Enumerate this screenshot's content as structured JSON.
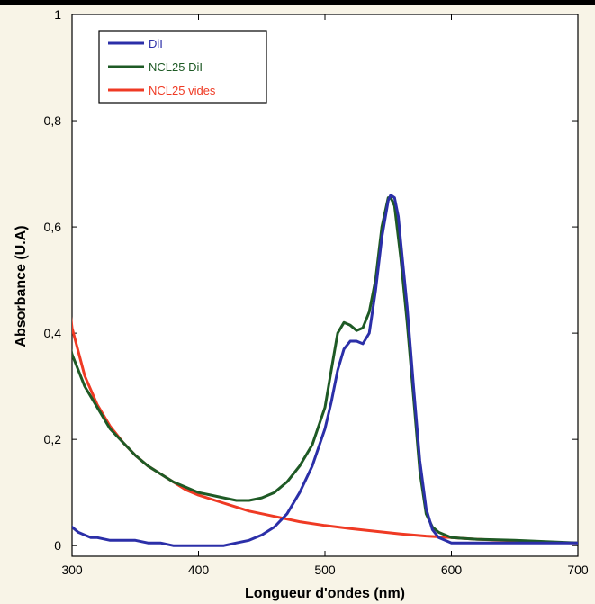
{
  "chart_data": {
    "type": "line",
    "title": "",
    "xlabel": "Longueur d'ondes (nm)",
    "ylabel": "Absorbance (U.A)",
    "xlim": [
      300,
      700
    ],
    "ylim": [
      -0.02,
      1.0
    ],
    "x_ticks": [
      300,
      400,
      500,
      600,
      700
    ],
    "x_tick_labels": [
      "300",
      "400",
      "500",
      "600",
      "700"
    ],
    "y_ticks": [
      0,
      0.2,
      0.4,
      0.6,
      0.8,
      1
    ],
    "y_tick_labels": [
      "0",
      "0,2",
      "0,4",
      "0,6",
      "0,8",
      "1"
    ],
    "grid": false,
    "legend_position": "top-left",
    "series": [
      {
        "name": "DiI",
        "color": "#2b2fa8",
        "x": [
          298,
          300,
          305,
          310,
          315,
          320,
          330,
          340,
          350,
          360,
          370,
          380,
          390,
          400,
          410,
          420,
          430,
          440,
          450,
          460,
          470,
          480,
          490,
          500,
          505,
          510,
          515,
          520,
          525,
          530,
          535,
          540,
          545,
          550,
          552,
          555,
          558,
          560,
          565,
          570,
          575,
          580,
          585,
          590,
          600,
          620,
          650,
          700
        ],
        "y": [
          0.04,
          0.035,
          0.025,
          0.02,
          0.015,
          0.015,
          0.01,
          0.01,
          0.01,
          0.005,
          0.005,
          0.0,
          0.0,
          0.0,
          0.0,
          0.0,
          0.005,
          0.01,
          0.02,
          0.035,
          0.06,
          0.1,
          0.15,
          0.22,
          0.27,
          0.33,
          0.37,
          0.385,
          0.385,
          0.38,
          0.4,
          0.48,
          0.58,
          0.65,
          0.66,
          0.655,
          0.62,
          0.57,
          0.45,
          0.3,
          0.16,
          0.07,
          0.03,
          0.015,
          0.005,
          0.005,
          0.005,
          0.005
        ]
      },
      {
        "name": "NCL25 DiI",
        "color": "#1e5a25",
        "x": [
          298,
          300,
          310,
          320,
          330,
          340,
          350,
          360,
          370,
          380,
          390,
          400,
          410,
          420,
          430,
          440,
          450,
          460,
          470,
          480,
          490,
          500,
          505,
          510,
          515,
          520,
          525,
          530,
          535,
          540,
          545,
          550,
          552,
          555,
          560,
          565,
          570,
          575,
          580,
          585,
          590,
          600,
          620,
          650,
          700
        ],
        "y": [
          0.38,
          0.36,
          0.3,
          0.26,
          0.22,
          0.195,
          0.17,
          0.15,
          0.135,
          0.12,
          0.11,
          0.1,
          0.095,
          0.09,
          0.085,
          0.085,
          0.09,
          0.1,
          0.12,
          0.15,
          0.19,
          0.26,
          0.33,
          0.4,
          0.42,
          0.415,
          0.405,
          0.41,
          0.44,
          0.5,
          0.6,
          0.655,
          0.655,
          0.64,
          0.54,
          0.42,
          0.28,
          0.14,
          0.06,
          0.035,
          0.025,
          0.015,
          0.012,
          0.01,
          0.005
        ]
      },
      {
        "name": "NCL25 vides",
        "color": "#ef3a24",
        "x": [
          298,
          300,
          310,
          320,
          330,
          340,
          350,
          360,
          370,
          380,
          390,
          400,
          420,
          440,
          460,
          480,
          500,
          520,
          540,
          560,
          580,
          600,
          620,
          640,
          660,
          680,
          700
        ],
        "y": [
          0.45,
          0.41,
          0.32,
          0.265,
          0.225,
          0.195,
          0.17,
          0.15,
          0.135,
          0.12,
          0.105,
          0.095,
          0.08,
          0.065,
          0.055,
          0.045,
          0.038,
          0.032,
          0.027,
          0.022,
          0.018,
          0.015,
          0.012,
          0.01,
          0.008,
          0.006,
          0.005
        ]
      }
    ]
  }
}
